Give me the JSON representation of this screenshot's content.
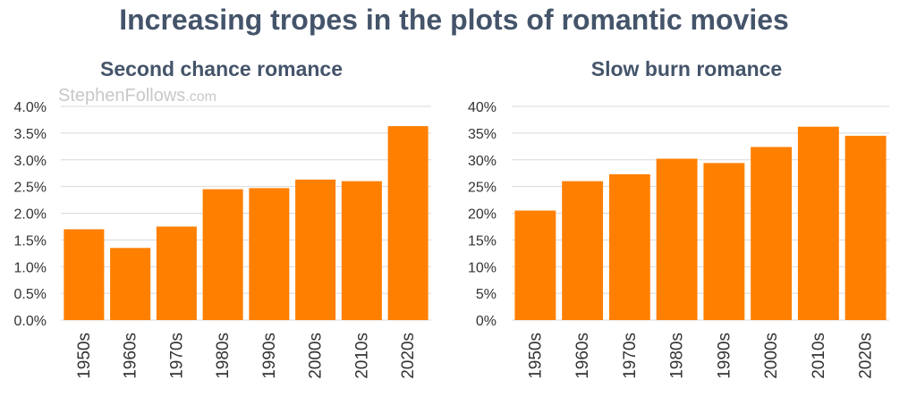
{
  "title": "Increasing tropes in the plots of romantic movies",
  "watermark": {
    "name": "StephenFollows",
    "suffix": ".com"
  },
  "colors": {
    "bar": "#ff7f00",
    "grid": "#d9d9d9",
    "text": "#44546a"
  },
  "chart_data": [
    {
      "type": "bar",
      "title": "Second chance romance",
      "categories": [
        "1950s",
        "1960s",
        "1970s",
        "1980s",
        "1990s",
        "2000s",
        "2010s",
        "2020s"
      ],
      "values": [
        1.7,
        1.35,
        1.75,
        2.45,
        2.47,
        2.63,
        2.6,
        3.63
      ],
      "ylim": [
        0,
        4
      ],
      "yticks": [
        "0.0%",
        "0.5%",
        "1.0%",
        "1.5%",
        "2.0%",
        "2.5%",
        "3.0%",
        "3.5%",
        "4.0%"
      ],
      "xlabel": "",
      "ylabel": "",
      "grid": true
    },
    {
      "type": "bar",
      "title": "Slow burn romance",
      "categories": [
        "1950s",
        "1960s",
        "1970s",
        "1980s",
        "1990s",
        "2000s",
        "2010s",
        "2020s"
      ],
      "values": [
        20.5,
        26,
        27.3,
        30.2,
        29.4,
        32.4,
        36.2,
        34.5
      ],
      "ylim": [
        0,
        40
      ],
      "yticks": [
        "0%",
        "5%",
        "10%",
        "15%",
        "20%",
        "25%",
        "30%",
        "35%",
        "40%"
      ],
      "xlabel": "",
      "ylabel": "",
      "grid": true
    }
  ]
}
